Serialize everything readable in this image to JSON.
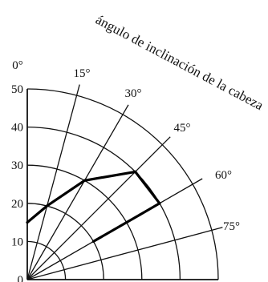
{
  "chart_data": {
    "type": "polar-line",
    "title": "ángulo de inclinación de la cabeza",
    "radial_axis": {
      "range": [
        0,
        50
      ],
      "tick_values": [
        0,
        10,
        20,
        30,
        40,
        50
      ],
      "tick_labels": [
        "0",
        "10",
        "20",
        "30",
        "40",
        "50"
      ]
    },
    "angular_axis": {
      "range_deg": [
        0,
        90
      ],
      "spokes_deg": [
        0,
        15,
        30,
        45,
        60,
        75,
        90
      ],
      "tick_labels": [
        "0°",
        "15°",
        "30°",
        "45°",
        "60°",
        "75°"
      ]
    },
    "grid": true,
    "series": [
      {
        "angles_deg": [
          0,
          15,
          30,
          45,
          60,
          60,
          60
        ],
        "radii": [
          15,
          20,
          30,
          40,
          40,
          34,
          20
        ]
      }
    ]
  }
}
